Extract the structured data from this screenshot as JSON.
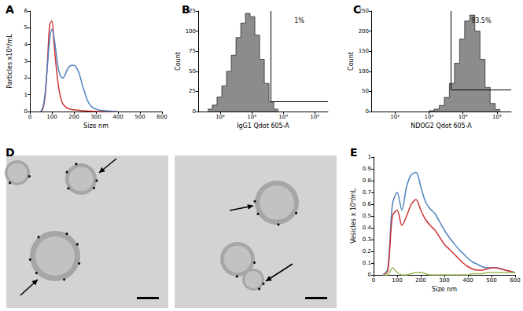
{
  "chart_data": [
    {
      "type": "line",
      "title": "A",
      "x_label": "Size nm",
      "y_label": "Particles x10⁹/mL",
      "x": [
        50,
        60,
        70,
        80,
        90,
        100,
        110,
        120,
        130,
        140,
        150,
        160,
        170,
        180,
        190,
        200,
        210,
        220,
        230,
        240,
        250,
        260,
        270,
        280,
        290,
        300,
        310,
        320,
        330,
        340,
        350,
        360,
        370,
        380,
        390,
        400
      ],
      "series": [
        {
          "color": "#cc3333",
          "values": [
            0,
            0.2,
            1.0,
            3.0,
            5.2,
            5.4,
            4.0,
            2.6,
            1.5,
            0.8,
            0.45,
            0.3,
            0.2,
            0.15,
            0.12,
            0.1,
            0.09,
            0.08,
            0.06,
            0.05,
            0.04,
            0.03,
            0.02,
            0.02,
            0.01,
            0.01,
            0,
            0,
            0,
            0,
            0,
            0,
            0,
            0,
            0,
            0
          ]
        },
        {
          "color": "#4f81bd",
          "values": [
            0,
            0.3,
            1.2,
            2.8,
            4.3,
            4.9,
            4.4,
            3.4,
            2.5,
            2.1,
            2.0,
            2.2,
            2.5,
            2.7,
            2.75,
            2.75,
            2.65,
            2.4,
            2.0,
            1.5,
            1.1,
            0.7,
            0.45,
            0.3,
            0.2,
            0.15,
            0.1,
            0.08,
            0.06,
            0.05,
            0.04,
            0.03,
            0.02,
            0.01,
            0,
            0
          ]
        }
      ],
      "xlim": [
        0,
        600
      ],
      "xticks": [
        0,
        100,
        200,
        300,
        400,
        500,
        600
      ],
      "ylim": [
        0,
        6
      ],
      "yticks": [
        0,
        1,
        2,
        3,
        4,
        5,
        6
      ],
      "grid": false
    },
    {
      "type": "histogram",
      "title": "B",
      "x_label": "IgG1 Qdot 605-A",
      "y_label": "Count",
      "color": "#8c8c8c",
      "log": "x",
      "bins": [
        40,
        56,
        79,
        112,
        158,
        224,
        316,
        447,
        631,
        891,
        1259,
        1778,
        2512,
        3548,
        5012,
        7079
      ],
      "counts": [
        3,
        8,
        18,
        32,
        50,
        70,
        92,
        110,
        122,
        118,
        95,
        65,
        35,
        12,
        3
      ],
      "gate": {
        "x": 4000,
        "y": 12,
        "label": "1%"
      },
      "xlim": [
        20,
        262144
      ],
      "xticks": [
        {
          "value": 100,
          "label": "10²"
        },
        {
          "value": 1000,
          "label": "10³"
        },
        {
          "value": 10000,
          "label": "10⁴"
        },
        {
          "value": 100000,
          "label": "10⁵"
        }
      ],
      "ylim": [
        0,
        125
      ],
      "yticks": [
        0,
        25,
        50,
        75,
        100,
        125
      ],
      "grid": false
    },
    {
      "type": "histogram",
      "title": "C",
      "x_label": "NDOG2 Qdot 605-A",
      "y_label": "Count",
      "color": "#8c8c8c",
      "log": "x",
      "bins": [
        1000,
        1413,
        1995,
        2818,
        3981,
        5623,
        7943,
        11220,
        15849,
        22387,
        31623,
        44668,
        63096,
        89125,
        125893
      ],
      "counts": [
        2,
        6,
        15,
        35,
        70,
        120,
        180,
        225,
        240,
        200,
        130,
        60,
        20,
        5
      ],
      "gate": {
        "x": 4500,
        "y": 55,
        "label": "93.5%"
      },
      "xlim": [
        20,
        262144
      ],
      "xticks": [
        {
          "value": 100,
          "label": "10²"
        },
        {
          "value": 1000,
          "label": "10³"
        },
        {
          "value": 10000,
          "label": "10⁴"
        },
        {
          "value": 100000,
          "label": "10⁵"
        }
      ],
      "ylim": [
        0,
        250
      ],
      "yticks": [
        0,
        50,
        100,
        150,
        200,
        250
      ],
      "grid": false
    },
    {
      "type": "image",
      "title": "D"
    },
    {
      "type": "line",
      "title": "E",
      "x_label": "Size nm",
      "y_label": "Vesicles x 10⁹/mL",
      "x": [
        40,
        60,
        80,
        100,
        120,
        140,
        160,
        180,
        200,
        220,
        240,
        260,
        280,
        300,
        320,
        340,
        360,
        380,
        400,
        420,
        440,
        460,
        480,
        500,
        520,
        540,
        560,
        580,
        600
      ],
      "series": [
        {
          "color": "#4f81bd",
          "values": [
            0,
            0.05,
            0.6,
            0.7,
            0.55,
            0.75,
            0.85,
            0.87,
            0.75,
            0.62,
            0.56,
            0.52,
            0.45,
            0.38,
            0.32,
            0.27,
            0.22,
            0.18,
            0.14,
            0.11,
            0.09,
            0.07,
            0.06,
            0.06,
            0.06,
            0.05,
            0.04,
            0.03,
            0.02
          ]
        },
        {
          "color": "#cc3333",
          "values": [
            0,
            0.03,
            0.5,
            0.55,
            0.42,
            0.5,
            0.6,
            0.64,
            0.55,
            0.47,
            0.42,
            0.38,
            0.32,
            0.26,
            0.22,
            0.18,
            0.14,
            0.1,
            0.07,
            0.05,
            0.04,
            0.04,
            0.05,
            0.06,
            0.06,
            0.05,
            0.04,
            0.03,
            0.02
          ]
        },
        {
          "color": "#9bbb59",
          "values": [
            0,
            0,
            0.06,
            0.02,
            0,
            0,
            0.01,
            0.02,
            0.02,
            0.01,
            0,
            0,
            0,
            0,
            0,
            0,
            0,
            0,
            0,
            0.01,
            0.01,
            0.01,
            0.02,
            0.02,
            0.02,
            0.02,
            0.02,
            0.02,
            0.02
          ]
        }
      ],
      "xlim": [
        0,
        600
      ],
      "xticks": [
        0,
        100,
        200,
        300,
        400,
        500,
        600
      ],
      "ylim": [
        0,
        1
      ],
      "yticks": [
        0,
        0.1,
        0.2,
        0.3,
        0.4,
        0.5,
        0.6,
        0.7,
        0.8,
        0.9,
        1
      ],
      "grid": false
    }
  ]
}
